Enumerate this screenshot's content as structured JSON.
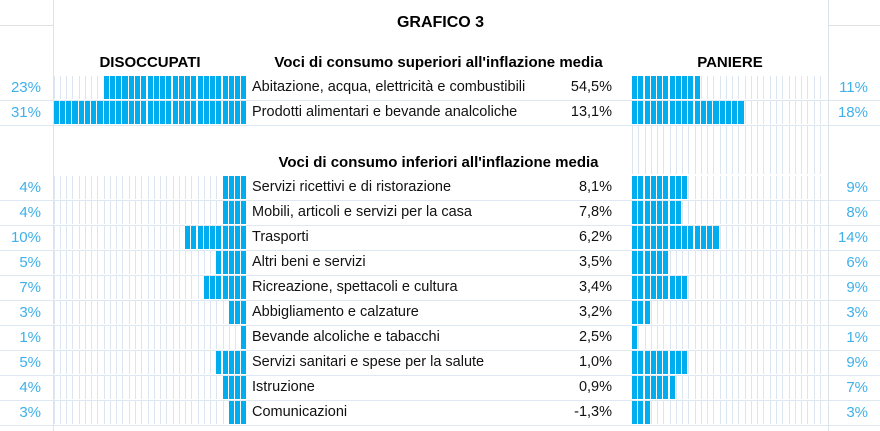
{
  "title": "GRAFICO 3",
  "headers": {
    "left": "DISOCCUPATI",
    "right": "PANIERE",
    "superiori": "Voci di consumo superiori all'inflazione media",
    "inferiori": "Voci di consumo inferiori all'inflazione media"
  },
  "colors": {
    "bar": "#00adef",
    "pct": "#3fb0ea"
  },
  "chart_data": {
    "type": "bar",
    "title": "GRAFICO 3",
    "series": [
      {
        "name": "DISOCCUPATI"
      },
      {
        "name": "PANIERE"
      }
    ],
    "superiori": [
      {
        "label": "Abitazione, acqua, elettricità e combustibili",
        "value": "54,5%",
        "disoccupati": 23,
        "disoccupati_label": "23%",
        "paniere": 11,
        "paniere_label": "11%"
      },
      {
        "label": "Prodotti alimentari e bevande analcoliche",
        "value": "13,1%",
        "disoccupati": 31,
        "disoccupati_label": "31%",
        "paniere": 18,
        "paniere_label": "18%"
      }
    ],
    "inferiori": [
      {
        "label": "Servizi ricettivi e di ristorazione",
        "value": "8,1%",
        "disoccupati": 4,
        "disoccupati_label": "4%",
        "paniere": 9,
        "paniere_label": "9%"
      },
      {
        "label": "Mobili, articoli e servizi per la casa",
        "value": "7,8%",
        "disoccupati": 4,
        "disoccupati_label": "4%",
        "paniere": 8,
        "paniere_label": "8%"
      },
      {
        "label": "Trasporti",
        "value": "6,2%",
        "disoccupati": 10,
        "disoccupati_label": "10%",
        "paniere": 14,
        "paniere_label": "14%"
      },
      {
        "label": "Altri beni e servizi",
        "value": "3,5%",
        "disoccupati": 5,
        "disoccupati_label": "5%",
        "paniere": 6,
        "paniere_label": "6%"
      },
      {
        "label": "Ricreazione, spettacoli e cultura",
        "value": "3,4%",
        "disoccupati": 7,
        "disoccupati_label": "7%",
        "paniere": 9,
        "paniere_label": "9%"
      },
      {
        "label": "Abbigliamento e calzature",
        "value": "3,2%",
        "disoccupati": 3,
        "disoccupati_label": "3%",
        "paniere": 3,
        "paniere_label": "3%"
      },
      {
        "label": "Bevande alcoliche e tabacchi",
        "value": "2,5%",
        "disoccupati": 1,
        "disoccupati_label": "1%",
        "paniere": 1,
        "paniere_label": "1%"
      },
      {
        "label": "Servizi sanitari e spese per la salute",
        "value": "1,0%",
        "disoccupati": 5,
        "disoccupati_label": "5%",
        "paniere": 9,
        "paniere_label": "9%"
      },
      {
        "label": "Istruzione",
        "value": "0,9%",
        "disoccupati": 4,
        "disoccupati_label": "4%",
        "paniere": 7,
        "paniere_label": "7%"
      },
      {
        "label": "Comunicazioni",
        "value": "-1,3%",
        "disoccupati": 3,
        "disoccupati_label": "3%",
        "paniere": 3,
        "paniere_label": "3%"
      }
    ],
    "max_cells": 31
  }
}
